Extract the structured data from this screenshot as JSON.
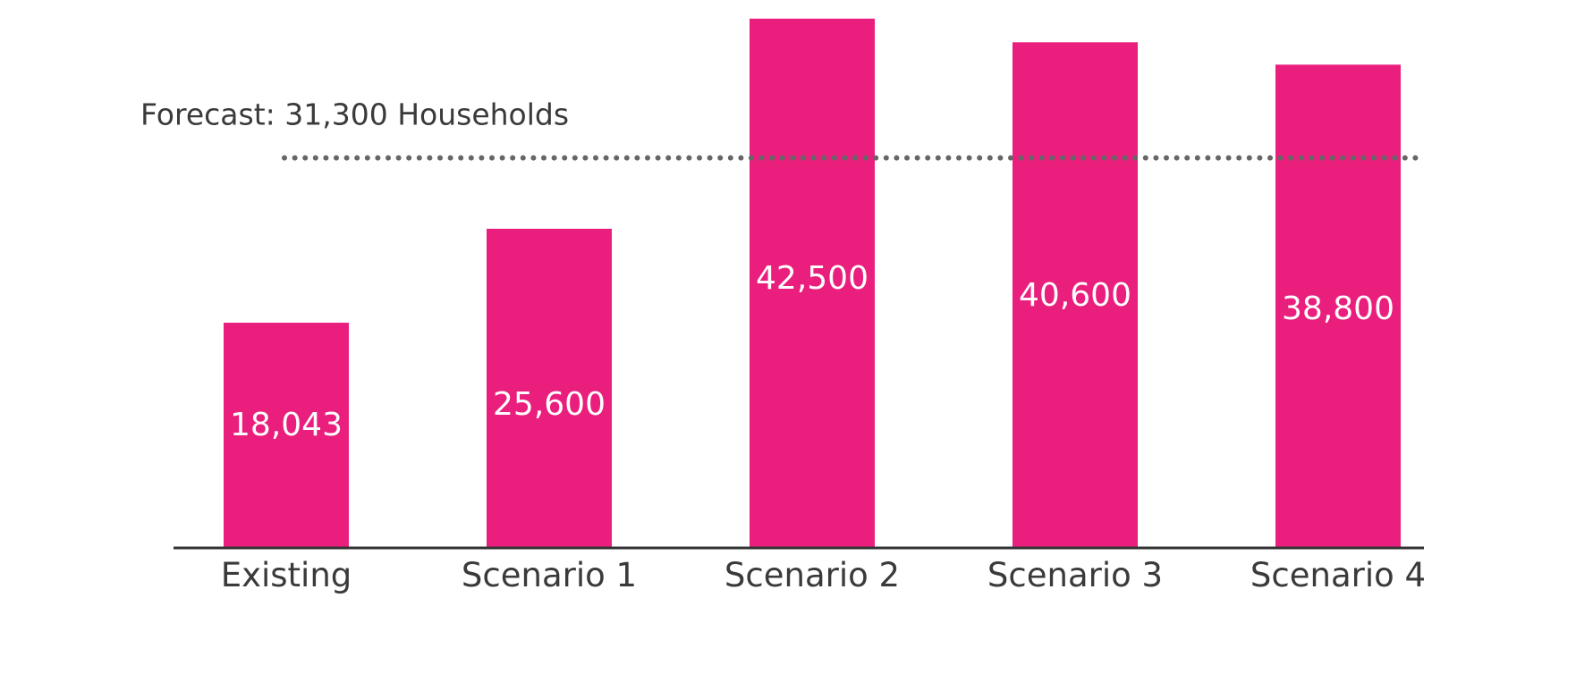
{
  "colors": {
    "bar": "#E91E7D",
    "axis": "#333333",
    "forecast_line": "#666666",
    "text": "#3a3a3a",
    "value_text": "#ffffff"
  },
  "chart_data": {
    "type": "bar",
    "title": "",
    "xlabel": "",
    "ylabel": "",
    "categories": [
      "Existing",
      "Scenario 1",
      "Scenario 2",
      "Scenario 3",
      "Scenario 4"
    ],
    "values": [
      18043,
      25600,
      42500,
      40600,
      38800
    ],
    "value_labels": [
      "18,043",
      "25,600",
      "42,500",
      "40,600",
      "38,800"
    ],
    "ylim": [
      0,
      44000
    ],
    "grid": false,
    "reference_line": {
      "value": 31300,
      "label": "Forecast: 31,300 Households",
      "style": "dotted"
    }
  }
}
